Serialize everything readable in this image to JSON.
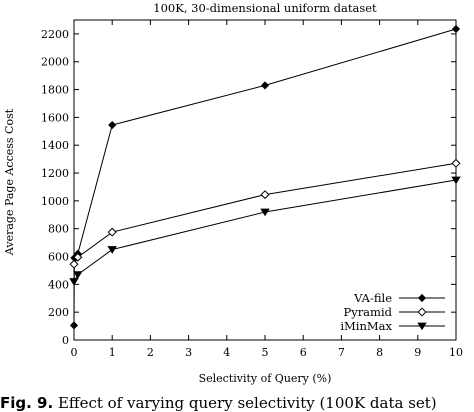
{
  "chart_data": {
    "type": "line",
    "title": "100K, 30-dimensional uniform dataset",
    "xlabel": "Selectivity of Query (%)",
    "ylabel": "Average Page Access Cost",
    "xlim": [
      0,
      10
    ],
    "ylim": [
      0,
      2300
    ],
    "xticks": [
      0,
      1,
      2,
      3,
      4,
      5,
      6,
      7,
      8,
      9,
      10
    ],
    "yticks": [
      0,
      200,
      400,
      600,
      800,
      1000,
      1200,
      1400,
      1600,
      1800,
      2000,
      2200
    ],
    "grid": false,
    "legend_position": "bottom-right",
    "series": [
      {
        "name": "VA-file",
        "marker": "filled-diamond",
        "color": "#000000",
        "x": [
          0.0,
          0.01,
          0.1,
          1,
          5,
          10
        ],
        "y": [
          105,
          590,
          620,
          1545,
          1830,
          2235
        ]
      },
      {
        "name": "Pyramid",
        "marker": "open-diamond",
        "color": "#000000",
        "x": [
          0.0,
          0.1,
          1,
          5,
          10
        ],
        "y": [
          545,
          595,
          775,
          1045,
          1270
        ]
      },
      {
        "name": "iMinMax",
        "marker": "filled-triangle-down",
        "color": "#000000",
        "x": [
          0.0,
          0.1,
          1,
          5,
          10
        ],
        "y": [
          420,
          470,
          650,
          920,
          1150
        ]
      }
    ]
  },
  "caption": {
    "label": "Fig. 9.",
    "text": "Effect of varying query selectivity (100K data set)"
  }
}
